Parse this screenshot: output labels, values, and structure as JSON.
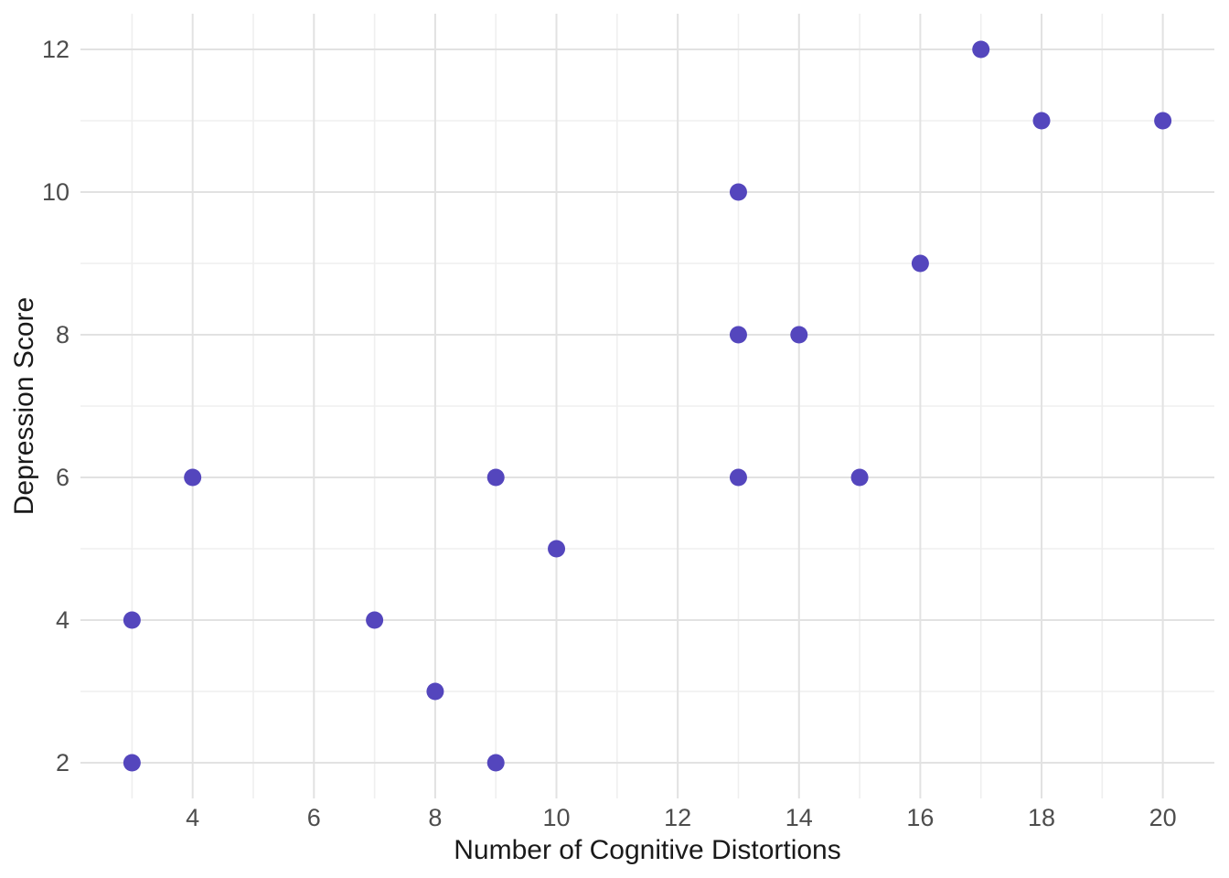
{
  "chart_data": {
    "type": "scatter",
    "title": "",
    "xlabel": "Number of Cognitive Distortions",
    "ylabel": "Depression Score",
    "points": [
      {
        "x": 3,
        "y": 2
      },
      {
        "x": 3,
        "y": 4
      },
      {
        "x": 4,
        "y": 6
      },
      {
        "x": 7,
        "y": 4
      },
      {
        "x": 8,
        "y": 3
      },
      {
        "x": 9,
        "y": 2
      },
      {
        "x": 9,
        "y": 6
      },
      {
        "x": 10,
        "y": 5
      },
      {
        "x": 13,
        "y": 6
      },
      {
        "x": 13,
        "y": 8
      },
      {
        "x": 13,
        "y": 10
      },
      {
        "x": 14,
        "y": 8
      },
      {
        "x": 15,
        "y": 6
      },
      {
        "x": 16,
        "y": 9
      },
      {
        "x": 17,
        "y": 12
      },
      {
        "x": 18,
        "y": 11
      },
      {
        "x": 20,
        "y": 11
      }
    ],
    "x_ticks": [
      4,
      6,
      8,
      10,
      12,
      14,
      16,
      18,
      20
    ],
    "y_ticks": [
      2,
      4,
      6,
      8,
      10,
      12
    ],
    "x_minor_gridlines": [
      3,
      5,
      7,
      9,
      11,
      13,
      15,
      17,
      19
    ],
    "y_minor_gridlines": [
      3,
      5,
      7,
      9,
      11
    ],
    "xlim": [
      2.15,
      20.85
    ],
    "ylim": [
      1.5,
      12.5
    ],
    "grid": "major-and-minor",
    "legend": "none",
    "colors": {
      "point": "#5446bd",
      "grid_major": "#e2e2e2",
      "grid_minor": "#efefef",
      "tick_label": "#4d4d4d",
      "axis_title": "#1a1a1a",
      "background": "#ffffff"
    }
  }
}
